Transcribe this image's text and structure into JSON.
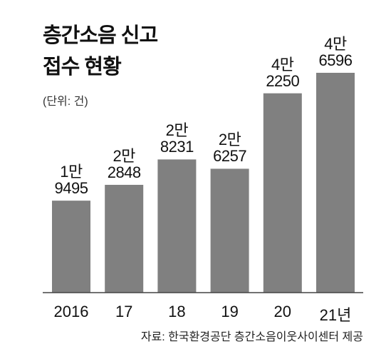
{
  "chart_data": {
    "type": "bar",
    "title": "층간소음 신고\n접수 현황",
    "subtitle": "(단위: 건)",
    "categories": [
      "2016",
      "17",
      "18",
      "19",
      "20",
      "21년"
    ],
    "values": [
      19495,
      22848,
      28231,
      26257,
      42250,
      46596
    ],
    "value_labels": [
      "1만\n9495",
      "2만\n2848",
      "2만\n8231",
      "2만\n6257",
      "4만\n2250",
      "4만\n6596"
    ],
    "color": "#808080",
    "source": "자료: 한국환경공단 층간소음이웃사이센터 제공"
  }
}
